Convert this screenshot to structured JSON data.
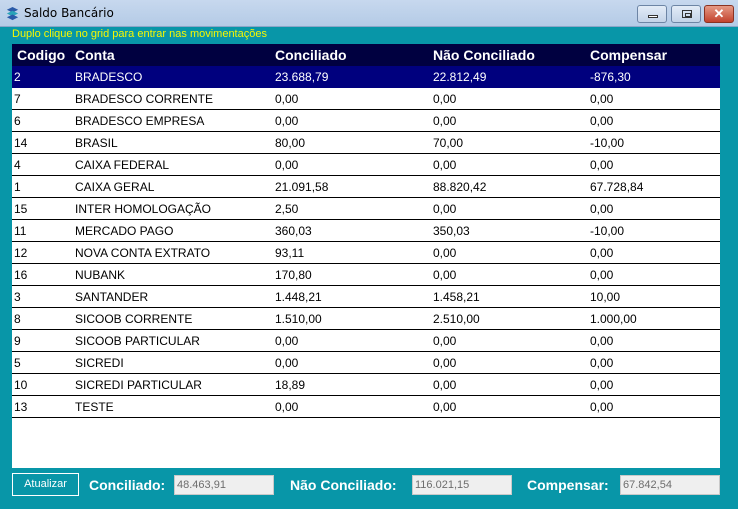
{
  "window": {
    "title": "Saldo Bancário",
    "icon": "app-logo-icon",
    "controls": [
      "minimize",
      "maximize",
      "close"
    ]
  },
  "hint": "Duplo clique no grid para entrar nas movimentações",
  "grid": {
    "columns": [
      "Codigo",
      "Conta",
      "Conciliado",
      "Não Conciliado",
      "Compensar"
    ],
    "selected_index": 0,
    "rows": [
      [
        "2",
        "BRADESCO",
        "23.688,79",
        "22.812,49",
        "-876,30"
      ],
      [
        "7",
        "BRADESCO CORRENTE",
        "0,00",
        "0,00",
        "0,00"
      ],
      [
        "6",
        "BRADESCO EMPRESA",
        "0,00",
        "0,00",
        "0,00"
      ],
      [
        "14",
        "BRASIL",
        "80,00",
        "70,00",
        "-10,00"
      ],
      [
        "4",
        "CAIXA FEDERAL",
        "0,00",
        "0,00",
        "0,00"
      ],
      [
        "1",
        "CAIXA GERAL",
        "21.091,58",
        "88.820,42",
        "67.728,84"
      ],
      [
        "15",
        "INTER HOMOLOGAÇÃO",
        "2,50",
        "0,00",
        "0,00"
      ],
      [
        "11",
        "MERCADO PAGO",
        "360,03",
        "350,03",
        "-10,00"
      ],
      [
        "12",
        "NOVA CONTA EXTRATO",
        "93,11",
        "0,00",
        "0,00"
      ],
      [
        "16",
        "NUBANK",
        "170,80",
        "0,00",
        "0,00"
      ],
      [
        "3",
        "SANTANDER",
        "1.448,21",
        "1.458,21",
        "10,00"
      ],
      [
        "8",
        "SICOOB CORRENTE",
        "1.510,00",
        "2.510,00",
        "1.000,00"
      ],
      [
        "9",
        "SICOOB PARTICULAR",
        "0,00",
        "0,00",
        "0,00"
      ],
      [
        "5",
        "SICREDI",
        "0,00",
        "0,00",
        "0,00"
      ],
      [
        "10",
        "SICREDI PARTICULAR",
        "18,89",
        "0,00",
        "0,00"
      ],
      [
        "13",
        "TESTE",
        "0,00",
        "0,00",
        "0,00"
      ]
    ]
  },
  "footer": {
    "refresh_label": "Atualizar",
    "conciliado_label": "Conciliado:",
    "conciliado_value": "48.463,91",
    "nao_conciliado_label": "Não Conciliado:",
    "nao_conciliado_value": "116.021,15",
    "compensar_label": "Compensar:",
    "compensar_value": "67.842,54"
  },
  "colors": {
    "background": "#0896a8",
    "header": "#000040",
    "selected_row": "#00007e",
    "hint_text": "#f8f800"
  }
}
